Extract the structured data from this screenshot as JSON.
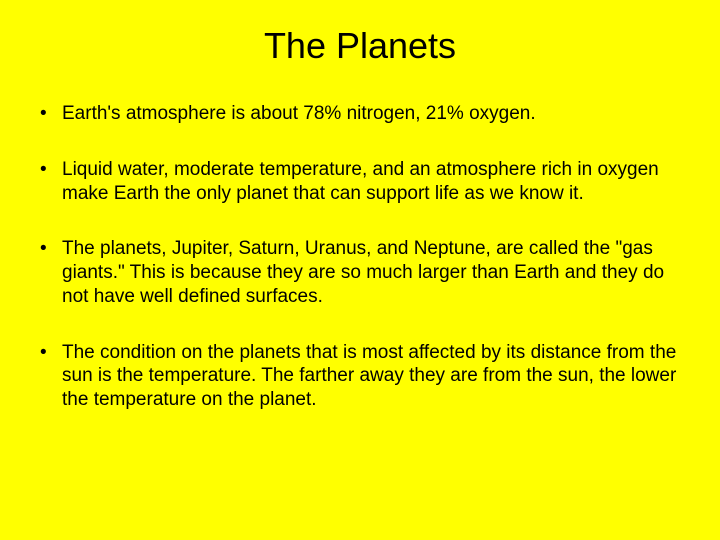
{
  "slide": {
    "background_color": "#ffff00",
    "text_color": "#000000",
    "title": "The Planets",
    "title_fontsize": 36,
    "body_fontsize": 19,
    "bullets": [
      "Earth's atmosphere is about 78% nitrogen, 21% oxygen.",
      "Liquid water, moderate temperature, and an atmosphere rich in oxygen make Earth  the only planet that can support life as we know it.",
      "The planets, Jupiter, Saturn, Uranus, and Neptune, are called the \"gas giants.\" This is because they are so much larger than Earth and they do not have well defined surfaces.",
      "The condition on the planets that is most affected  by its distance from the sun is the temperature.  The farther away they are from the sun, the lower the temperature on the planet."
    ]
  }
}
